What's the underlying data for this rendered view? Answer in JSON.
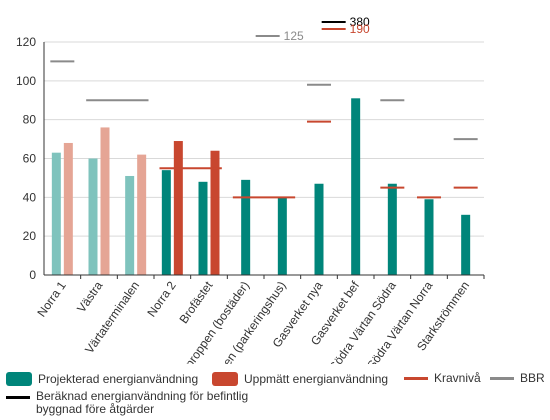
{
  "colors": {
    "projected": "#00857a",
    "projected_light": "#7fc3bd",
    "measured": "#c8472f",
    "measured_light": "#e5a595",
    "krav": "#c8472f",
    "bbr": "#8a8a8a",
    "before": "#000000",
    "grid": "#d9d9d9",
    "axis": "#333333"
  },
  "chart_data": {
    "type": "bar",
    "categories": [
      "Norra 1",
      "Västra",
      "Värtaterminalen",
      "Norra 2",
      "Brofästet",
      "Jaktproppen (bostäder)",
      "Jaktproppen (parkeringshus)",
      "Gasverket nya",
      "Gasverket bef",
      "Södra Värtan Södra",
      "Södra Värtan Norra",
      "Starkströmmen"
    ],
    "category_labels": [
      "Norra 1",
      "Västra",
      "Värtaterminalen",
      "Norra 2",
      "Brofästet",
      "Jaktproppen (bostäder)",
      "Jaktproppen (parkeringshus)",
      "Gasverket nya",
      "Gasverket bef",
      "Södra Värtan Södra",
      "Södra Värtan Norra",
      "Starkströmmen"
    ],
    "ylim": [
      0,
      120
    ],
    "yticks": [
      0,
      20,
      40,
      60,
      80,
      100,
      120
    ],
    "grid": true,
    "light_categories": [
      0,
      1,
      2
    ],
    "series": [
      {
        "name": "Projekterad energianvändning",
        "values": [
          63,
          60,
          51,
          54,
          48,
          49,
          40,
          47,
          91,
          47,
          39,
          31
        ]
      },
      {
        "name": "Uppmätt energianvändning",
        "values": [
          68,
          76,
          62,
          69,
          64,
          null,
          null,
          null,
          null,
          null,
          null,
          null
        ]
      }
    ],
    "krav": [
      null,
      null,
      null,
      55,
      55,
      40,
      40,
      79,
      null,
      45,
      40,
      45
    ],
    "bbr": [
      110,
      90,
      90,
      null,
      null,
      null,
      null,
      98,
      null,
      90,
      null,
      70
    ],
    "offscale": [
      {
        "type": "bbr",
        "value": 125,
        "label": "125"
      },
      {
        "type": "before",
        "value": 380,
        "label": "380"
      },
      {
        "type": "krav",
        "value": 190,
        "label": "190"
      }
    ],
    "legend": {
      "projected": "Projekterad energianvändning",
      "measured": "Uppmätt energianvändning",
      "krav": "Kravnivå",
      "bbr": "BBR",
      "before": "Beräknad energianvändning för befintlig byggnad före åtgärder"
    }
  }
}
